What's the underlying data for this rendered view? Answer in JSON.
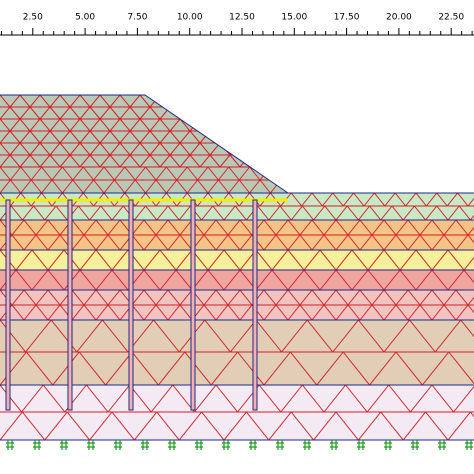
{
  "ruler": {
    "labels": [
      "2.50",
      "5.00",
      "7.50",
      "10.00",
      "12.50",
      "15.00",
      "17.50",
      "20.00",
      "22.50"
    ]
  }
}
